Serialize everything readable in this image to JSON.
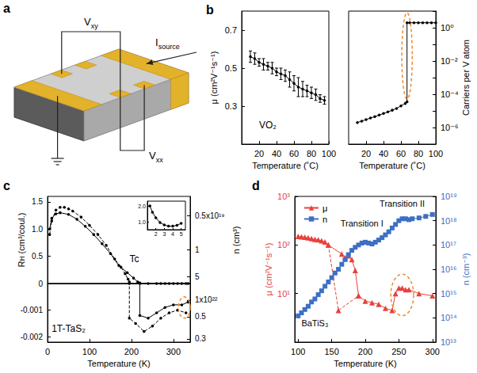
{
  "diagram": {
    "panel": "a",
    "hall_voltage": {
      "main": "V",
      "sub": "xy"
    },
    "current": {
      "main": "I",
      "sub": "source"
    },
    "longitudinal_voltage": {
      "main": "V",
      "sub": "xx"
    }
  },
  "chart_data": [
    {
      "panel": "b",
      "type": "line",
      "xlabel": "Temperature (˚C)",
      "ylabel": "μ (cm²V⁻¹s⁻¹)",
      "xlim": [
        0,
        100
      ],
      "xticks": [
        20,
        40,
        60,
        80,
        100
      ],
      "ylim": [
        0.1,
        0.8
      ],
      "yticks": [
        0.3,
        0.5,
        0.7
      ],
      "grid": false,
      "color": "#000000",
      "marker": "circle",
      "x": [
        10,
        15,
        20,
        25,
        30,
        35,
        40,
        45,
        50,
        55,
        60,
        65,
        70,
        75,
        80,
        85,
        90,
        95
      ],
      "values": [
        0.56,
        0.55,
        0.53,
        0.52,
        0.51,
        0.5,
        0.48,
        0.47,
        0.46,
        0.44,
        0.42,
        0.4,
        0.39,
        0.38,
        0.37,
        0.36,
        0.34,
        0.33
      ],
      "errors": [
        0.03,
        0.03,
        0.02,
        0.03,
        0.02,
        0.03,
        0.02,
        0.03,
        0.03,
        0.04,
        0.04,
        0.05,
        0.04,
        0.03,
        0.03,
        0.03,
        0.02,
        0.02
      ],
      "annotations": [
        {
          "text": "VO₂",
          "x": 30,
          "y": 0.2
        }
      ]
    },
    {
      "type": "line",
      "xlabel": "Temperature (˚C)",
      "ylabel": "Carriers per V atom",
      "log": "y",
      "xlim": [
        0,
        100
      ],
      "xticks": [
        20,
        40,
        60,
        80,
        100
      ],
      "ylim": [
        1e-07,
        10
      ],
      "yticks": [
        {
          "value": 1e-06,
          "label": "10⁻⁶"
        },
        {
          "value": 0.0001,
          "label": "10⁻⁴"
        },
        {
          "value": 0.01,
          "label": "10⁻²"
        },
        {
          "value": 1,
          "label": "10⁰"
        }
      ],
      "grid": false,
      "color": "#000000",
      "marker": "circle",
      "x": [
        10,
        15,
        20,
        25,
        30,
        35,
        40,
        45,
        50,
        55,
        60,
        65,
        67,
        67,
        70,
        75,
        80,
        85,
        90,
        95,
        100
      ],
      "values": [
        2e-06,
        2.4e-06,
        3e-06,
        3.7e-06,
        4.5e-06,
        5.6e-06,
        7e-06,
        8.7e-06,
        1.1e-05,
        1.4e-05,
        2e-05,
        2.8e-05,
        3.5e-05,
        2,
        2,
        2,
        2,
        2,
        2,
        2,
        2
      ],
      "highlight": {
        "x": [
          61,
          73
        ],
        "y": [
          5e-05,
          8
        ],
        "color": "#f08a30"
      }
    },
    {
      "panel": "c",
      "type": "line",
      "xlabel": "Temperature (K)",
      "ylabel": "Rʜ (cm³/coul.)",
      "y2label": "n (cm³)",
      "xlim": [
        0,
        340
      ],
      "xticks": [
        0,
        100,
        200,
        300
      ],
      "grid": false,
      "segments": [
        {
          "ylim": [
            0,
            1.6
          ],
          "yticks": [
            0,
            0.5,
            {
              "value": 1,
              "label": "1.0"
            },
            1.5
          ],
          "y2ticks": [
            {
              "value": 5e+18,
              "label": "0.5x10¹⁹"
            },
            {
              "value": 1e+19,
              "label": "1"
            },
            {
              "value": 5e+19,
              "label": "5"
            }
          ]
        },
        {
          "ylim": [
            -0.0022,
            0
          ],
          "yticks": [
            -0.002,
            -0.001
          ],
          "y2ticks": [
            {
              "value": 1e+22,
              "label": "1x10²²"
            },
            {
              "value": 5e+21,
              "label": "0.5"
            },
            {
              "value": 3e+21,
              "label": "0.3"
            }
          ]
        }
      ],
      "series": [
        {
          "color": "#000000",
          "marker": "circle",
          "line_style": "dashed",
          "x": [
            5,
            10,
            20,
            30,
            40,
            50,
            60,
            80,
            100,
            120,
            140,
            160,
            175,
            185,
            192,
            195,
            195,
            210,
            230,
            250,
            270,
            290,
            310,
            330
          ],
          "values": [
            0.9,
            1.15,
            1.35,
            1.4,
            1.4,
            1.37,
            1.33,
            1.22,
            1.07,
            0.9,
            0.7,
            0.45,
            0.3,
            0.18,
            0.08,
            0.03,
            -0.0013,
            -0.0015,
            -0.0018,
            -0.0016,
            -0.0013,
            -0.0011,
            -0.001,
            -0.0011
          ]
        },
        {
          "color": "#000000",
          "marker": "circle",
          "line_style": "solid",
          "x": [
            5,
            10,
            20,
            30,
            50,
            70,
            90,
            110,
            130,
            150,
            170,
            190,
            205,
            215,
            220,
            220,
            240,
            260,
            280,
            300,
            320,
            335
          ],
          "values": [
            1.0,
            1.2,
            1.28,
            1.3,
            1.27,
            1.18,
            1.05,
            0.9,
            0.73,
            0.55,
            0.33,
            0.2,
            0.1,
            0.03,
            0.01,
            -0.0012,
            -0.0013,
            -0.0011,
            -0.0009,
            -0.0008,
            -0.0008,
            -0.0007
          ]
        }
      ],
      "annotations": [
        {
          "text": "1T-TaS₂",
          "x": 50,
          "y": -0.0017
        },
        {
          "text": "Tc",
          "x": 207,
          "y": 0.45
        }
      ],
      "highlight": {
        "x": [
          312,
          340
        ],
        "y": [
          -0.0013,
          -0.0005
        ],
        "color": "#f08a30"
      },
      "inset": {
        "xlim": [
          1,
          5.5
        ],
        "xticks": [
          2,
          3,
          4,
          5
        ],
        "ylim": [
          0.5,
          2.3
        ],
        "yticks": [
          {
            "value": 1,
            "label": "1.0"
          },
          {
            "value": 2,
            "label": "2.0"
          }
        ],
        "color": "#000000",
        "marker": "circle",
        "x": [
          1.3,
          1.6,
          2,
          2.5,
          3,
          3.5,
          4,
          4.5,
          5
        ],
        "values": [
          2.0,
          1.6,
          1.25,
          0.95,
          0.8,
          0.72,
          0.72,
          0.78,
          0.9
        ]
      }
    },
    {
      "panel": "d",
      "type": "line",
      "xlabel": "Temperature (K)",
      "ylabel": "μ (cm²V⁻¹s⁻¹)",
      "y2label": "n (cm⁻³)",
      "log": "y",
      "xlim": [
        95,
        305
      ],
      "xticks": [
        100,
        150,
        200,
        250,
        300
      ],
      "ylim": [
        1,
        1000
      ],
      "yticks": [
        {
          "value": 10,
          "label": "10¹"
        },
        {
          "value": 100,
          "label": "10²"
        },
        {
          "value": 1000,
          "label": "10³"
        }
      ],
      "y2lim": [
        10000000000000.0,
        1e+19
      ],
      "y2ticks": [
        {
          "value": 10000000000000.0,
          "label": "10¹³"
        },
        {
          "value": 100000000000000.0,
          "label": "10¹⁴"
        },
        {
          "value": 1000000000000000.0,
          "label": "10¹⁵"
        },
        {
          "value": 1e+16,
          "label": "10¹⁶"
        },
        {
          "value": 1e+17,
          "label": "10¹⁷"
        },
        {
          "value": 1e+18,
          "label": "10¹⁸"
        },
        {
          "value": 1e+19,
          "label": "10¹⁹"
        }
      ],
      "grid": false,
      "legend": "upper left",
      "series": [
        {
          "name": "μ",
          "color": "#e8413c",
          "marker": "triangle",
          "line_style": "solid",
          "x": [
            100,
            105,
            110,
            115,
            120,
            125,
            130,
            135,
            140,
            145,
            165,
            170,
            175,
            180,
            185,
            190,
            200,
            210,
            220,
            230,
            240,
            245,
            250,
            255,
            260,
            265,
            280,
            300
          ],
          "values": [
            150,
            148,
            145,
            140,
            135,
            130,
            128,
            122,
            115,
            100,
            65,
            55,
            60,
            50,
            30,
            9,
            7,
            6.5,
            6,
            5,
            4.5,
            10,
            13,
            13,
            12,
            12,
            10,
            9
          ]
        },
        {
          "color": "#e8413c",
          "marker": "triangle",
          "line_style": "dashed",
          "x": [
            145,
            160,
            190
          ],
          "values": [
            100,
            4.5,
            9
          ]
        },
        {
          "name": "n",
          "color": "#3d6fc4",
          "marker": "square",
          "line_style": "solid",
          "axis": "y2",
          "x": [
            100,
            105,
            110,
            115,
            120,
            125,
            130,
            135,
            140,
            145,
            150,
            155,
            160,
            165,
            170,
            175,
            180,
            185,
            190,
            195,
            200,
            205,
            210,
            215,
            220,
            225,
            230,
            235,
            240,
            245,
            250,
            255,
            260,
            265,
            270,
            280,
            290,
            300
          ],
          "values": [
            120000000000000.0,
            160000000000000.0,
            220000000000000.0,
            300000000000000.0,
            450000000000000.0,
            600000000000000.0,
            900000000000000.0,
            1300000000000000.0,
            2000000000000000.0,
            3000000000000000.0,
            4500000000000000.0,
            7000000000000000.0,
            1e+16,
            1.6e+16,
            2.5e+16,
            4e+16,
            6e+16,
            8e+16,
            1e+17,
            1.2e+17,
            1.3e+17,
            1.2e+17,
            1.1e+17,
            1.3e+17,
            1.6e+17,
            2e+17,
            2.6e+17,
            3.5e+17,
            5e+17,
            7e+17,
            1e+18,
            1.2e+18,
            1.2e+18,
            1.1e+18,
            1.2e+18,
            1.3e+18,
            1.5e+18,
            1.8e+18
          ]
        }
      ],
      "annotations": [
        {
          "text": "Transition I",
          "x": 195,
          "y": 8e+17,
          "axis": "y2"
        },
        {
          "text": "Transition II",
          "x": 255,
          "y": 5e+18,
          "axis": "y2"
        },
        {
          "text": "BaTiS₃",
          "x": 125,
          "y": 2.5
        }
      ],
      "highlight": {
        "x": [
          238,
          272
        ],
        "y": [
          3.5,
          25
        ],
        "color": "#f08a30"
      }
    }
  ]
}
